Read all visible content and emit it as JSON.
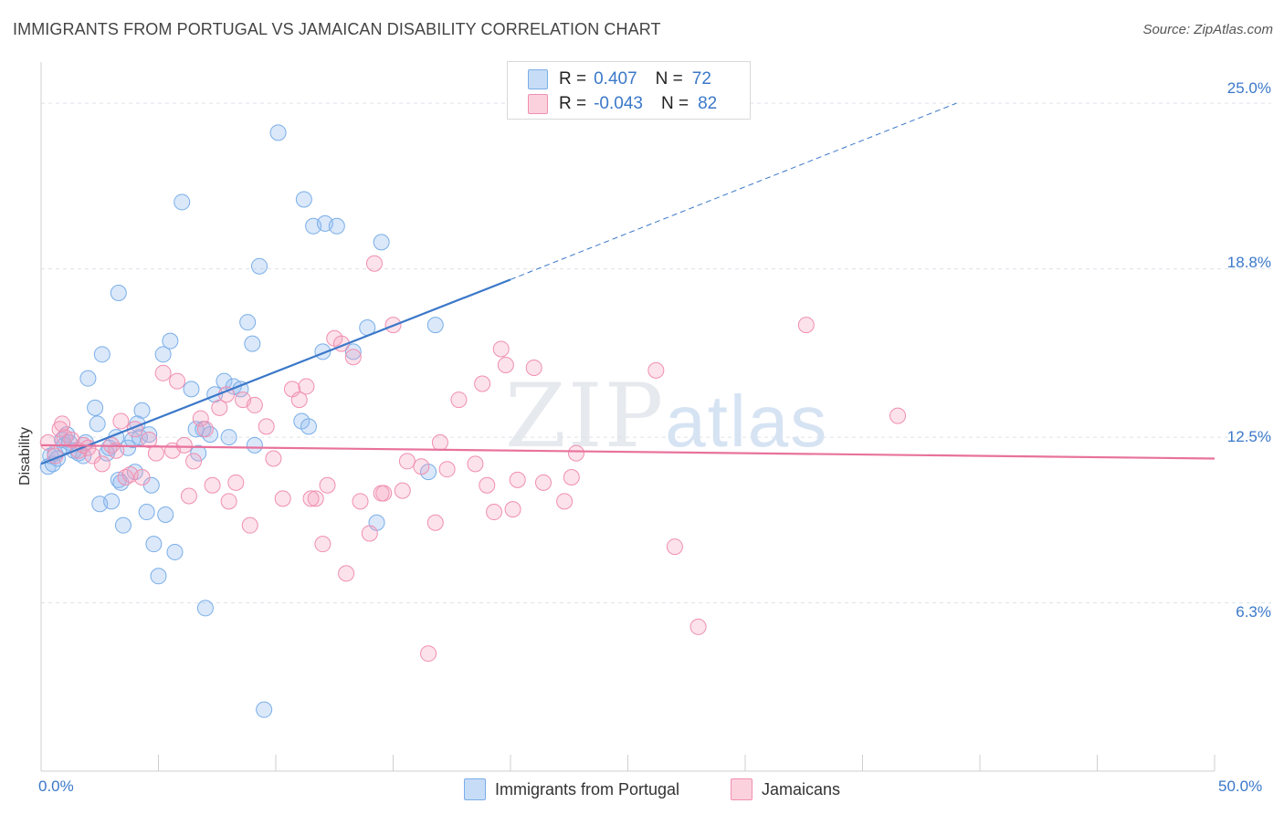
{
  "title": "IMMIGRANTS FROM PORTUGAL VS JAMAICAN DISABILITY CORRELATION CHART",
  "source": "Source: ZipAtlas.com",
  "watermark": {
    "zip": "ZIP",
    "atlas": "atlas"
  },
  "stats": [
    {
      "r_label": "R =",
      "r_value": "0.407",
      "n_label": "N =",
      "n_value": "72",
      "color": "#7aaee8"
    },
    {
      "r_label": "R =",
      "r_value": "-0.043",
      "n_label": "N =",
      "n_value": "82",
      "color": "#f08fb0"
    }
  ],
  "legend": [
    {
      "label": "Immigrants from Portugal",
      "color": "#7aaee8"
    },
    {
      "label": "Jamaicans",
      "color": "#f08fb0"
    }
  ],
  "chart_data": {
    "type": "scatter",
    "title": "IMMIGRANTS FROM PORTUGAL VS JAMAICAN DISABILITY CORRELATION CHART",
    "xlabel": "",
    "ylabel": "Disability",
    "xlim": [
      0,
      50
    ],
    "ylim": [
      0,
      26.2
    ],
    "x_tick_labels": [
      {
        "value": 0,
        "label": "0.0%"
      },
      {
        "value": 50,
        "label": "50.0%"
      }
    ],
    "y_tick_labels": [
      {
        "value": 6.3,
        "label": "6.3%"
      },
      {
        "value": 12.5,
        "label": "12.5%"
      },
      {
        "value": 18.8,
        "label": "18.8%"
      },
      {
        "value": 25.0,
        "label": "25.0%"
      }
    ],
    "grid": "horizontal dashed",
    "series": [
      {
        "name": "Immigrants from Portugal",
        "color": "#7aaee8",
        "trend": {
          "x": [
            0,
            20
          ],
          "y": [
            11.5,
            18.4
          ],
          "extended_to": [
            39,
            25.0
          ]
        },
        "points": [
          [
            0.3,
            11.4
          ],
          [
            0.5,
            11.5
          ],
          [
            0.4,
            11.8
          ],
          [
            0.7,
            11.7
          ],
          [
            0.6,
            11.9
          ],
          [
            0.9,
            12.4
          ],
          [
            1.0,
            12.2
          ],
          [
            1.1,
            12.6
          ],
          [
            1.2,
            12.3
          ],
          [
            1.4,
            12.0
          ],
          [
            1.6,
            11.9
          ],
          [
            1.8,
            11.8
          ],
          [
            1.9,
            12.3
          ],
          [
            2.0,
            14.7
          ],
          [
            2.3,
            13.6
          ],
          [
            2.4,
            13.0
          ],
          [
            2.5,
            10.0
          ],
          [
            2.6,
            15.6
          ],
          [
            2.8,
            11.9
          ],
          [
            2.9,
            12.1
          ],
          [
            3.0,
            10.1
          ],
          [
            3.2,
            12.5
          ],
          [
            3.3,
            10.9
          ],
          [
            3.4,
            10.8
          ],
          [
            3.5,
            9.2
          ],
          [
            3.7,
            12.1
          ],
          [
            3.9,
            12.4
          ],
          [
            3.3,
            17.9
          ],
          [
            4.0,
            11.2
          ],
          [
            4.2,
            12.5
          ],
          [
            4.3,
            13.5
          ],
          [
            4.5,
            9.7
          ],
          [
            4.6,
            12.6
          ],
          [
            4.7,
            10.7
          ],
          [
            4.8,
            8.5
          ],
          [
            5.0,
            7.3
          ],
          [
            5.2,
            15.6
          ],
          [
            5.3,
            9.6
          ],
          [
            5.5,
            16.1
          ],
          [
            5.7,
            8.2
          ],
          [
            6.0,
            21.3
          ],
          [
            6.4,
            14.3
          ],
          [
            6.6,
            12.8
          ],
          [
            6.7,
            11.9
          ],
          [
            6.9,
            12.8
          ],
          [
            7.0,
            6.1
          ],
          [
            7.2,
            12.6
          ],
          [
            7.4,
            14.1
          ],
          [
            7.8,
            14.6
          ],
          [
            8.0,
            12.5
          ],
          [
            8.2,
            14.4
          ],
          [
            8.5,
            14.3
          ],
          [
            8.8,
            16.8
          ],
          [
            9.0,
            16.0
          ],
          [
            9.1,
            12.2
          ],
          [
            9.3,
            18.9
          ],
          [
            9.5,
            2.3
          ],
          [
            10.1,
            23.9
          ],
          [
            11.1,
            13.1
          ],
          [
            11.2,
            21.4
          ],
          [
            11.4,
            12.9
          ],
          [
            11.6,
            20.4
          ],
          [
            12.1,
            20.5
          ],
          [
            12.0,
            15.7
          ],
          [
            12.6,
            20.4
          ],
          [
            13.3,
            15.7
          ],
          [
            13.9,
            16.6
          ],
          [
            14.3,
            9.3
          ],
          [
            14.5,
            19.8
          ],
          [
            16.5,
            11.2
          ],
          [
            16.8,
            16.7
          ],
          [
            4.1,
            13.0
          ]
        ]
      },
      {
        "name": "Jamaicans",
        "color": "#f08fb0",
        "trend": {
          "x": [
            0,
            50
          ],
          "y": [
            12.2,
            11.7
          ]
        },
        "points": [
          [
            0.3,
            12.3
          ],
          [
            0.6,
            11.8
          ],
          [
            0.8,
            12.8
          ],
          [
            0.9,
            13.0
          ],
          [
            1.0,
            12.5
          ],
          [
            1.3,
            12.4
          ],
          [
            1.6,
            12.0
          ],
          [
            1.8,
            12.2
          ],
          [
            2.0,
            12.1
          ],
          [
            2.2,
            11.8
          ],
          [
            2.6,
            11.5
          ],
          [
            3.0,
            12.2
          ],
          [
            3.2,
            12.0
          ],
          [
            3.4,
            13.1
          ],
          [
            3.6,
            11.0
          ],
          [
            3.8,
            11.1
          ],
          [
            4.0,
            12.8
          ],
          [
            4.3,
            11.0
          ],
          [
            4.6,
            12.4
          ],
          [
            4.9,
            11.9
          ],
          [
            5.2,
            14.9
          ],
          [
            5.6,
            12.0
          ],
          [
            5.8,
            14.6
          ],
          [
            6.1,
            12.2
          ],
          [
            6.3,
            10.3
          ],
          [
            6.5,
            11.6
          ],
          [
            6.8,
            13.2
          ],
          [
            7.0,
            12.8
          ],
          [
            7.3,
            10.7
          ],
          [
            7.6,
            13.6
          ],
          [
            7.9,
            14.1
          ],
          [
            8.0,
            10.1
          ],
          [
            8.3,
            10.8
          ],
          [
            8.6,
            13.9
          ],
          [
            8.9,
            9.2
          ],
          [
            9.1,
            13.7
          ],
          [
            9.6,
            12.9
          ],
          [
            9.9,
            11.7
          ],
          [
            10.3,
            10.2
          ],
          [
            10.7,
            14.3
          ],
          [
            11.0,
            13.9
          ],
          [
            11.3,
            14.4
          ],
          [
            11.7,
            10.2
          ],
          [
            12.0,
            8.5
          ],
          [
            12.2,
            10.7
          ],
          [
            12.5,
            16.2
          ],
          [
            12.8,
            16.0
          ],
          [
            13.0,
            7.4
          ],
          [
            13.3,
            15.5
          ],
          [
            13.6,
            10.1
          ],
          [
            14.0,
            8.9
          ],
          [
            14.2,
            19.0
          ],
          [
            14.6,
            10.4
          ],
          [
            15.0,
            16.7
          ],
          [
            15.4,
            10.5
          ],
          [
            15.6,
            11.6
          ],
          [
            16.2,
            11.4
          ],
          [
            16.5,
            4.4
          ],
          [
            16.8,
            9.3
          ],
          [
            17.0,
            12.3
          ],
          [
            17.3,
            11.3
          ],
          [
            17.8,
            13.9
          ],
          [
            18.5,
            11.5
          ],
          [
            18.8,
            14.5
          ],
          [
            19.0,
            10.7
          ],
          [
            19.3,
            9.7
          ],
          [
            19.6,
            15.8
          ],
          [
            19.8,
            15.2
          ],
          [
            20.1,
            9.8
          ],
          [
            20.3,
            10.9
          ],
          [
            21.0,
            15.1
          ],
          [
            21.4,
            10.8
          ],
          [
            22.3,
            10.1
          ],
          [
            22.6,
            11.0
          ],
          [
            22.8,
            11.9
          ],
          [
            26.2,
            15.0
          ],
          [
            27.0,
            8.4
          ],
          [
            28.0,
            5.4
          ],
          [
            32.6,
            16.7
          ],
          [
            36.5,
            13.3
          ],
          [
            14.5,
            10.4
          ],
          [
            11.5,
            10.2
          ]
        ]
      }
    ]
  }
}
